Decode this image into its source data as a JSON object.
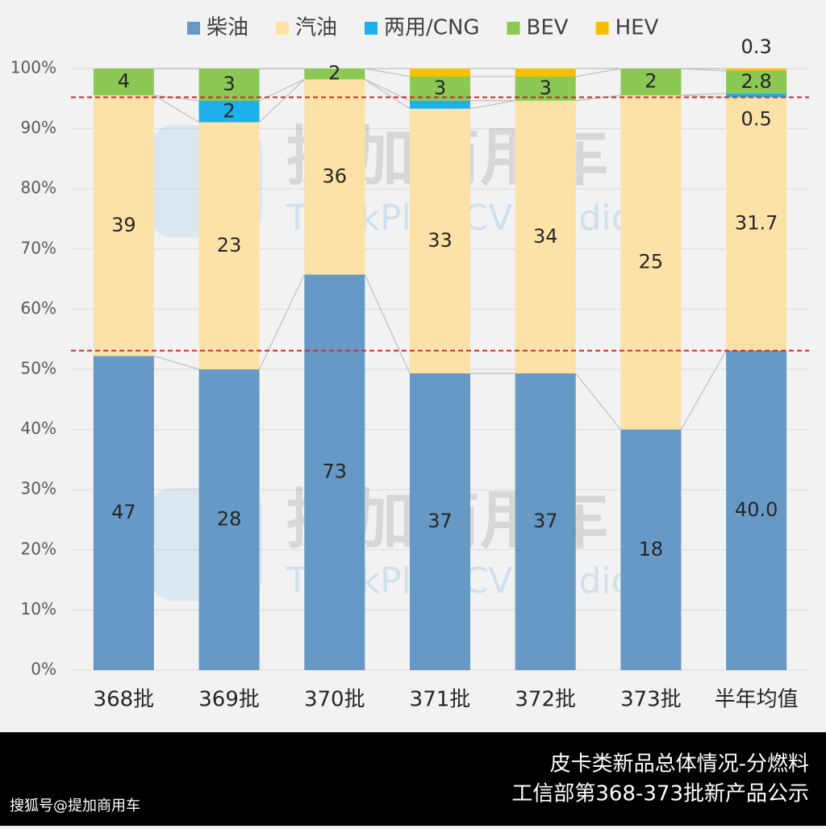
{
  "chart_data": {
    "type": "bar",
    "stacking": "percent",
    "categories": [
      "368批",
      "369批",
      "370批",
      "371批",
      "372批",
      "373批",
      "半年均值"
    ],
    "series": [
      {
        "name": "柴油",
        "color": "#6699c6",
        "values": [
          47,
          28,
          73,
          37,
          37,
          18,
          40.0
        ],
        "value_labels": [
          "47",
          "28",
          "73",
          "37",
          "37",
          "18",
          "40.0"
        ]
      },
      {
        "name": "汽油",
        "color": "#fde2a8",
        "values": [
          39,
          23,
          36,
          33,
          34,
          25,
          31.7
        ],
        "value_labels": [
          "39",
          "23",
          "36",
          "33",
          "34",
          "25",
          "31.7"
        ]
      },
      {
        "name": "两用/CNG",
        "color": "#1eb0ea",
        "values": [
          0,
          2,
          0,
          1,
          0,
          0,
          0.5
        ],
        "value_labels": [
          null,
          "2",
          null,
          null,
          null,
          null,
          "0.5"
        ]
      },
      {
        "name": "BEV",
        "color": "#8cc854",
        "values": [
          4,
          3,
          2,
          3,
          3,
          2,
          2.8
        ],
        "value_labels": [
          "4",
          "3",
          "2",
          "3",
          "3",
          "2",
          "2.8"
        ]
      },
      {
        "name": "HEV",
        "color": "#f6c000",
        "values": [
          0,
          0,
          0,
          1,
          1,
          0,
          0.3
        ],
        "value_labels": [
          null,
          null,
          null,
          null,
          null,
          null,
          "0.3"
        ]
      }
    ],
    "ylim": [
      0,
      100
    ],
    "yticks": [
      {
        "value": 0,
        "label": "0%"
      },
      {
        "value": 10,
        "label": "10%"
      },
      {
        "value": 20,
        "label": "20%"
      },
      {
        "value": 30,
        "label": "30%"
      },
      {
        "value": 40,
        "label": "40%"
      },
      {
        "value": 50,
        "label": "50%"
      },
      {
        "value": 60,
        "label": "60%"
      },
      {
        "value": 70,
        "label": "70%"
      },
      {
        "value": 80,
        "label": "80%"
      },
      {
        "value": 90,
        "label": "90%"
      },
      {
        "value": 100,
        "label": "100%"
      }
    ],
    "grid": true,
    "legend": "top",
    "watermark": [
      "提加商用车",
      "TruckPlus CV studio"
    ],
    "footer": {
      "title": "皮卡类新品总体情况-分燃料",
      "subtitle": "工信部第368-373批新产品公示",
      "source": "搜狐号@提加商用车"
    }
  }
}
